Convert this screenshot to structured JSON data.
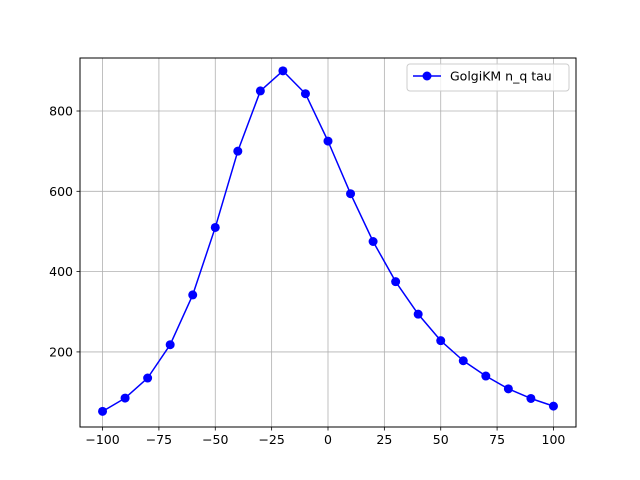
{
  "chart_data": {
    "type": "line",
    "title": "",
    "xlabel": "",
    "ylabel": "",
    "xlim": [
      -110,
      110
    ],
    "ylim": [
      13,
      932
    ],
    "grid": true,
    "legend_position": "top-right",
    "x_ticks": [
      -100,
      -75,
      -50,
      -25,
      0,
      25,
      50,
      75,
      100
    ],
    "x_tick_labels": [
      "−100",
      "−75",
      "−50",
      "−25",
      "0",
      "25",
      "50",
      "75",
      "100"
    ],
    "y_ticks": [
      200,
      400,
      600,
      800
    ],
    "y_tick_labels": [
      "200",
      "400",
      "600",
      "800"
    ],
    "series": [
      {
        "name": "GolgiKM n_q tau",
        "color": "#0000ff",
        "marker": "circle",
        "x": [
          -100,
          -90,
          -80,
          -70,
          -60,
          -50,
          -40,
          -30,
          -20,
          -10,
          0,
          10,
          20,
          30,
          40,
          50,
          60,
          70,
          80,
          90,
          100
        ],
        "y": [
          52,
          85,
          135,
          218,
          342,
          510,
          700,
          850,
          900,
          843,
          725,
          594,
          475,
          375,
          294,
          228,
          178,
          140,
          108,
          84,
          65
        ]
      }
    ]
  }
}
